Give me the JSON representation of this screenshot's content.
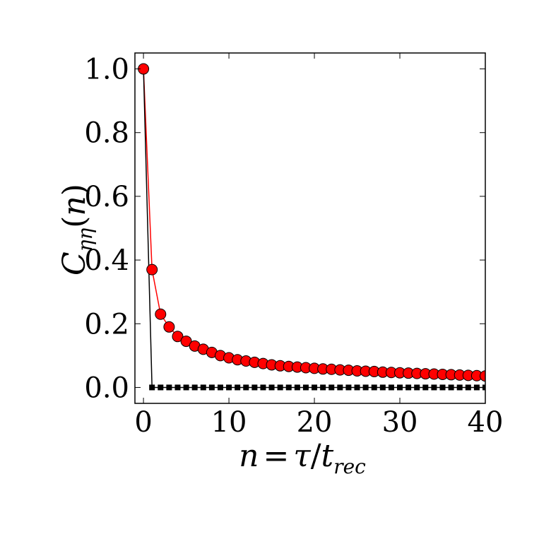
{
  "chart_data": {
    "type": "line",
    "xlabel": "n = τ/t_rec",
    "ylabel": "C_ηη(n)",
    "xlim": [
      -1,
      40
    ],
    "ylim": [
      -0.05,
      1.05
    ],
    "x_ticks": [
      "0",
      "10",
      "20",
      "30",
      "40"
    ],
    "y_ticks": [
      "0.0",
      "0.2",
      "0.4",
      "0.6",
      "0.8",
      "1.0"
    ],
    "grid": false,
    "x": [
      0,
      1,
      2,
      3,
      4,
      5,
      6,
      7,
      8,
      9,
      10,
      11,
      12,
      13,
      14,
      15,
      16,
      17,
      18,
      19,
      20,
      21,
      22,
      23,
      24,
      25,
      26,
      27,
      28,
      29,
      30,
      31,
      32,
      33,
      34,
      35,
      36,
      37,
      38,
      39,
      40
    ],
    "series": [
      {
        "color": "#ff0000",
        "marker": "circle",
        "values": [
          1.0,
          0.37,
          0.23,
          0.19,
          0.16,
          0.145,
          0.13,
          0.12,
          0.11,
          0.1,
          0.093,
          0.087,
          0.083,
          0.079,
          0.075,
          0.071,
          0.068,
          0.066,
          0.064,
          0.062,
          0.06,
          0.058,
          0.057,
          0.055,
          0.054,
          0.052,
          0.051,
          0.05,
          0.048,
          0.047,
          0.046,
          0.045,
          0.044,
          0.043,
          0.042,
          0.041,
          0.04,
          0.039,
          0.038,
          0.037,
          0.036
        ]
      },
      {
        "color": "#000000",
        "marker": "square",
        "values": [
          1.0,
          0.0,
          0.0,
          0.0,
          0.0,
          0.0,
          0.0,
          0.0,
          0.0,
          0.0,
          0.0,
          0.0,
          0.0,
          0.0,
          0.0,
          0.0,
          0.0,
          0.0,
          0.0,
          0.0,
          0.0,
          0.0,
          0.0,
          0.0,
          0.0,
          0.0,
          0.0,
          0.0,
          0.0,
          0.0,
          0.0,
          0.0,
          0.0,
          0.0,
          0.0,
          0.0,
          0.0,
          0.0,
          0.0,
          0.0,
          0.0
        ]
      }
    ]
  }
}
